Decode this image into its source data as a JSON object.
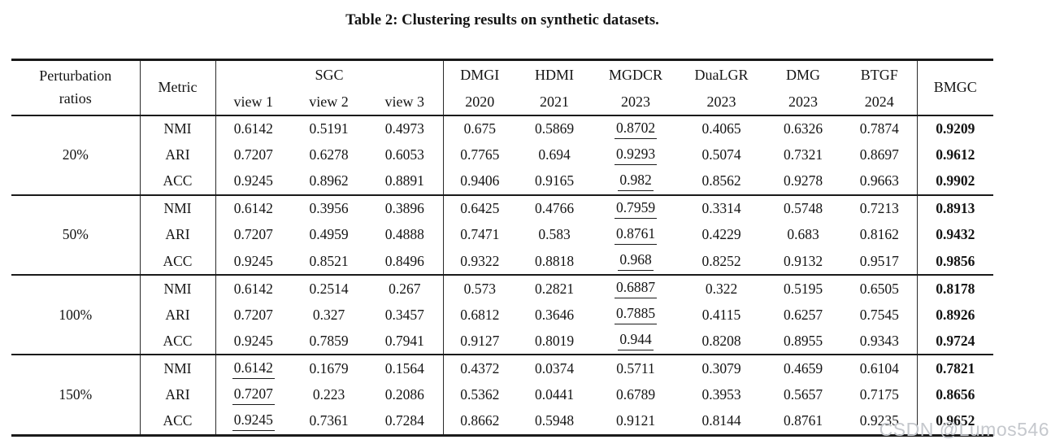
{
  "title": "Table 2: Clustering results on synthetic datasets.",
  "watermark": "CSDN @Lumos546",
  "table": {
    "header": {
      "ratio_label_lines": [
        "Perturbation",
        "ratios"
      ],
      "metric": "Metric",
      "sgc_group": "SGC",
      "sgc_views": [
        "view 1",
        "view 2",
        "view 3"
      ],
      "methods": [
        {
          "name": "DMGI",
          "year": "2020"
        },
        {
          "name": "HDMI",
          "year": "2021"
        },
        {
          "name": "MGDCR",
          "year": "2023"
        },
        {
          "name": "DuaLGR",
          "year": "2023"
        },
        {
          "name": "DMG",
          "year": "2023"
        },
        {
          "name": "BTGF",
          "year": "2024"
        }
      ],
      "ours": "BMGC"
    },
    "blocks": [
      {
        "ratio": "20%",
        "rows": [
          {
            "metric": "NMI",
            "values": [
              "0.6142",
              "0.5191",
              "0.4973",
              "0.675",
              "0.5869",
              "0.8702",
              "0.4065",
              "0.6326",
              "0.7874",
              "0.9209"
            ],
            "underline": [
              5
            ],
            "bold": [
              9
            ]
          },
          {
            "metric": "ARI",
            "values": [
              "0.7207",
              "0.6278",
              "0.6053",
              "0.7765",
              "0.694",
              "0.9293",
              "0.5074",
              "0.7321",
              "0.8697",
              "0.9612"
            ],
            "underline": [
              5
            ],
            "bold": [
              9
            ]
          },
          {
            "metric": "ACC",
            "values": [
              "0.9245",
              "0.8962",
              "0.8891",
              "0.9406",
              "0.9165",
              "0.982",
              "0.8562",
              "0.9278",
              "0.9663",
              "0.9902"
            ],
            "underline": [
              5
            ],
            "bold": [
              9
            ]
          }
        ]
      },
      {
        "ratio": "50%",
        "rows": [
          {
            "metric": "NMI",
            "values": [
              "0.6142",
              "0.3956",
              "0.3896",
              "0.6425",
              "0.4766",
              "0.7959",
              "0.3314",
              "0.5748",
              "0.7213",
              "0.8913"
            ],
            "underline": [
              5
            ],
            "bold": [
              9
            ]
          },
          {
            "metric": "ARI",
            "values": [
              "0.7207",
              "0.4959",
              "0.4888",
              "0.7471",
              "0.583",
              "0.8761",
              "0.4229",
              "0.683",
              "0.8162",
              "0.9432"
            ],
            "underline": [
              5
            ],
            "bold": [
              9
            ]
          },
          {
            "metric": "ACC",
            "values": [
              "0.9245",
              "0.8521",
              "0.8496",
              "0.9322",
              "0.8818",
              "0.968",
              "0.8252",
              "0.9132",
              "0.9517",
              "0.9856"
            ],
            "underline": [
              5
            ],
            "bold": [
              9
            ]
          }
        ]
      },
      {
        "ratio": "100%",
        "rows": [
          {
            "metric": "NMI",
            "values": [
              "0.6142",
              "0.2514",
              "0.267",
              "0.573",
              "0.2821",
              "0.6887",
              "0.322",
              "0.5195",
              "0.6505",
              "0.8178"
            ],
            "underline": [
              5
            ],
            "bold": [
              9
            ]
          },
          {
            "metric": "ARI",
            "values": [
              "0.7207",
              "0.327",
              "0.3457",
              "0.6812",
              "0.3646",
              "0.7885",
              "0.4115",
              "0.6257",
              "0.7545",
              "0.8926"
            ],
            "underline": [
              5
            ],
            "bold": [
              9
            ]
          },
          {
            "metric": "ACC",
            "values": [
              "0.9245",
              "0.7859",
              "0.7941",
              "0.9127",
              "0.8019",
              "0.944",
              "0.8208",
              "0.8955",
              "0.9343",
              "0.9724"
            ],
            "underline": [
              5
            ],
            "bold": [
              9
            ]
          }
        ]
      },
      {
        "ratio": "150%",
        "rows": [
          {
            "metric": "NMI",
            "values": [
              "0.6142",
              "0.1679",
              "0.1564",
              "0.4372",
              "0.0374",
              "0.5711",
              "0.3079",
              "0.4659",
              "0.6104",
              "0.7821"
            ],
            "underline": [
              0
            ],
            "bold": [
              9
            ]
          },
          {
            "metric": "ARI",
            "values": [
              "0.7207",
              "0.223",
              "0.2086",
              "0.5362",
              "0.0441",
              "0.6789",
              "0.3953",
              "0.5657",
              "0.7175",
              "0.8656"
            ],
            "underline": [
              0
            ],
            "bold": [
              9
            ]
          },
          {
            "metric": "ACC",
            "values": [
              "0.9245",
              "0.7361",
              "0.7284",
              "0.8662",
              "0.5948",
              "0.9121",
              "0.8144",
              "0.8761",
              "0.9235",
              "0.9652"
            ],
            "underline": [
              0
            ],
            "bold": [
              9
            ]
          }
        ]
      }
    ]
  }
}
